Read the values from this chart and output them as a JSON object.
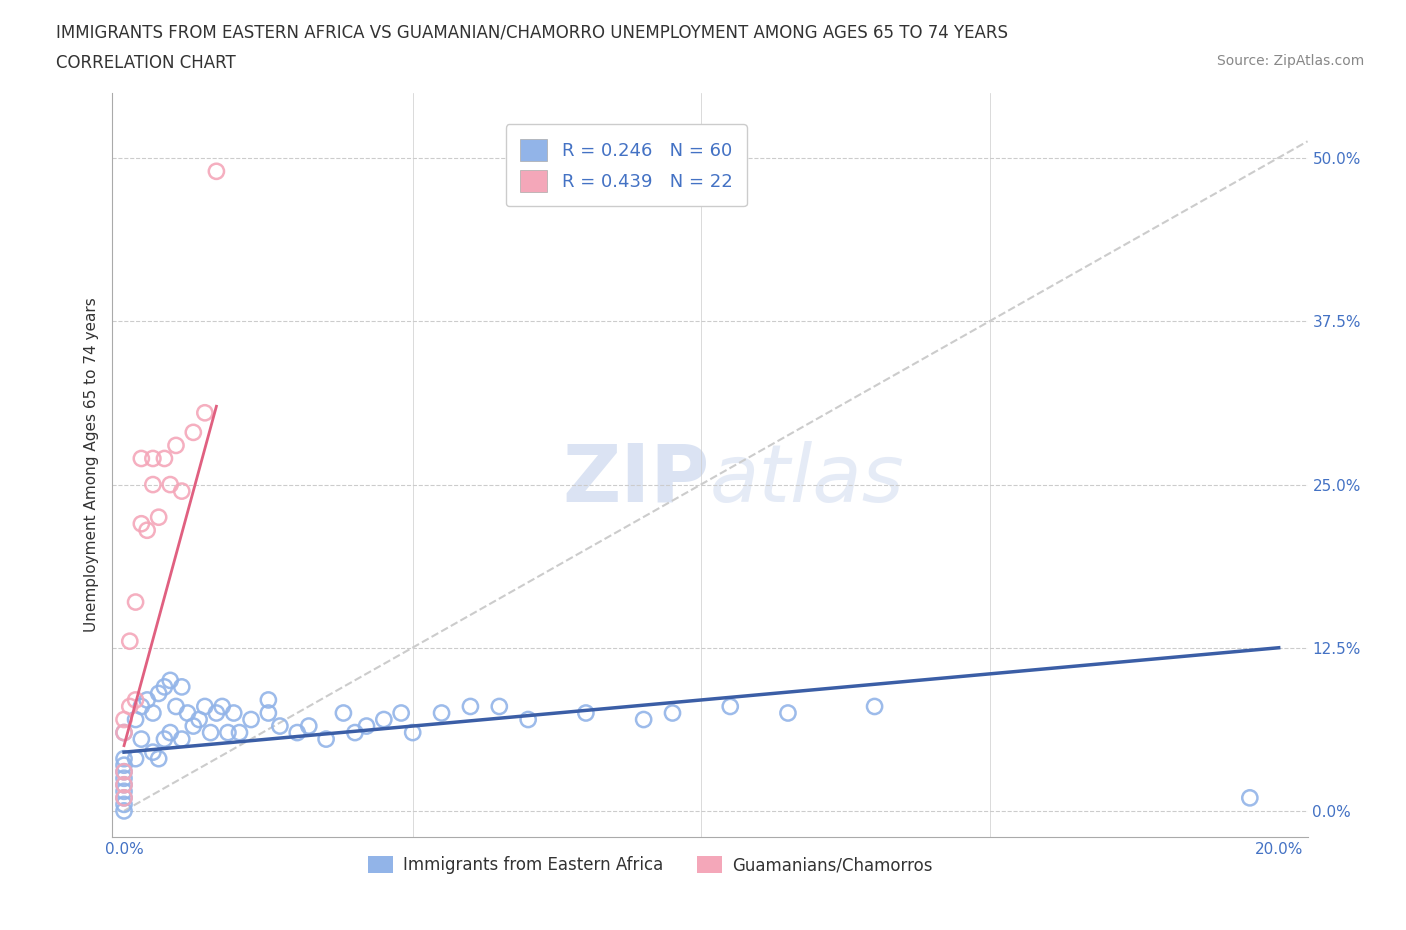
{
  "title_line1": "IMMIGRANTS FROM EASTERN AFRICA VS GUAMANIAN/CHAMORRO UNEMPLOYMENT AMONG AGES 65 TO 74 YEARS",
  "title_line2": "CORRELATION CHART",
  "source_text": "Source: ZipAtlas.com",
  "ylabel": "Unemployment Among Ages 65 to 74 years",
  "xlim": [
    -0.002,
    0.205
  ],
  "ylim": [
    -0.02,
    0.55
  ],
  "yticks": [
    0.0,
    0.125,
    0.25,
    0.375,
    0.5
  ],
  "ytick_labels": [
    "0.0%",
    "12.5%",
    "25.0%",
    "37.5%",
    "50.0%"
  ],
  "xtick_left_label": "0.0%",
  "xtick_right_label": "20.0%",
  "legend_r1": "R = 0.246",
  "legend_n1": "N = 60",
  "legend_r2": "R = 0.439",
  "legend_n2": "N = 22",
  "blue_color": "#92b4e8",
  "pink_color": "#f4a7b9",
  "blue_line_color": "#3b5ea6",
  "pink_line_color": "#e06080",
  "ref_line_color": "#cccccc",
  "watermark_color": "#ccd8ee",
  "background_color": "#ffffff",
  "blue_scatter_x": [
    0.0,
    0.0,
    0.0,
    0.0,
    0.0,
    0.0,
    0.0,
    0.0,
    0.0,
    0.0,
    0.002,
    0.002,
    0.003,
    0.003,
    0.004,
    0.005,
    0.005,
    0.006,
    0.006,
    0.007,
    0.007,
    0.008,
    0.008,
    0.009,
    0.01,
    0.01,
    0.011,
    0.012,
    0.013,
    0.014,
    0.015,
    0.016,
    0.017,
    0.018,
    0.019,
    0.02,
    0.022,
    0.025,
    0.025,
    0.027,
    0.03,
    0.032,
    0.035,
    0.038,
    0.04,
    0.042,
    0.045,
    0.048,
    0.05,
    0.055,
    0.06,
    0.065,
    0.07,
    0.08,
    0.09,
    0.095,
    0.105,
    0.115,
    0.13,
    0.195
  ],
  "blue_scatter_y": [
    0.0,
    0.005,
    0.01,
    0.015,
    0.02,
    0.025,
    0.03,
    0.035,
    0.04,
    0.06,
    0.04,
    0.07,
    0.055,
    0.08,
    0.085,
    0.045,
    0.075,
    0.04,
    0.09,
    0.055,
    0.095,
    0.06,
    0.1,
    0.08,
    0.055,
    0.095,
    0.075,
    0.065,
    0.07,
    0.08,
    0.06,
    0.075,
    0.08,
    0.06,
    0.075,
    0.06,
    0.07,
    0.075,
    0.085,
    0.065,
    0.06,
    0.065,
    0.055,
    0.075,
    0.06,
    0.065,
    0.07,
    0.075,
    0.06,
    0.075,
    0.08,
    0.08,
    0.07,
    0.075,
    0.07,
    0.075,
    0.08,
    0.075,
    0.08,
    0.01
  ],
  "pink_scatter_x": [
    0.0,
    0.0,
    0.0,
    0.0,
    0.0,
    0.001,
    0.001,
    0.002,
    0.002,
    0.003,
    0.003,
    0.004,
    0.005,
    0.005,
    0.006,
    0.007,
    0.008,
    0.009,
    0.01,
    0.012,
    0.014,
    0.016
  ],
  "pink_scatter_y": [
    0.01,
    0.02,
    0.03,
    0.06,
    0.07,
    0.08,
    0.13,
    0.085,
    0.16,
    0.22,
    0.27,
    0.215,
    0.25,
    0.27,
    0.225,
    0.27,
    0.25,
    0.28,
    0.245,
    0.29,
    0.305,
    0.49
  ],
  "blue_trend_x": [
    0.0,
    0.2
  ],
  "blue_trend_y": [
    0.045,
    0.125
  ],
  "pink_trend_x": [
    0.0,
    0.016
  ],
  "pink_trend_y": [
    0.05,
    0.31
  ]
}
